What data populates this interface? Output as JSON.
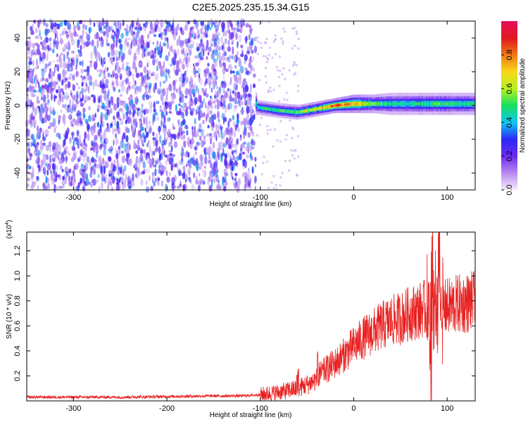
{
  "chart_data": [
    {
      "type": "heatmap",
      "title": "C2E5.2025.235.15.34.G15",
      "xlabel": "Height of straight line (km)",
      "ylabel": "Frequency (Hz)",
      "xlim": [
        -350,
        130
      ],
      "ylim": [
        -50,
        50
      ],
      "xticks": [
        -300,
        -200,
        -100,
        0,
        100
      ],
      "xtick_labels": [
        "-300",
        "-200",
        "-100",
        "0",
        "100"
      ],
      "yticks": [
        -40,
        -20,
        0,
        20,
        40
      ],
      "ytick_labels": [
        "-40",
        "-20",
        "0",
        "20",
        "40"
      ],
      "colorbar": {
        "label": "Normalized spectral amplitude",
        "range": [
          0,
          1
        ],
        "ticks": [
          0.0,
          0.2,
          0.4,
          0.6,
          0.8
        ],
        "tick_labels": [
          "0.0",
          "0.2",
          "0.4",
          "0.6",
          "0.8"
        ],
        "colormap": [
          "#f4eefc",
          "#b98af0",
          "#6a2cf0",
          "#2a2af8",
          "#10c8f0",
          "#18e060",
          "#b8f020",
          "#f8d818",
          "#f07818",
          "#e01820",
          "#e8105a"
        ]
      },
      "noise_region": {
        "x_range": [
          -350,
          -105
        ],
        "y_range": [
          -50,
          50
        ],
        "level": "low-medium"
      },
      "signal_band": [
        {
          "x": -105,
          "f_center": -1,
          "f_width": 4,
          "amp": 0.45
        },
        {
          "x": -80,
          "f_center": -3,
          "f_width": 4,
          "amp": 0.5
        },
        {
          "x": -60,
          "f_center": -4,
          "f_width": 4,
          "amp": 0.55
        },
        {
          "x": -40,
          "f_center": -2,
          "f_width": 4,
          "amp": 0.65
        },
        {
          "x": -20,
          "f_center": 0,
          "f_width": 4,
          "amp": 0.85
        },
        {
          "x": 0,
          "f_center": 1,
          "f_width": 5,
          "amp": 0.75
        },
        {
          "x": 20,
          "f_center": 1,
          "f_width": 5,
          "amp": 0.55
        },
        {
          "x": 40,
          "f_center": 1,
          "f_width": 6,
          "amp": 0.45
        },
        {
          "x": 60,
          "f_center": 1,
          "f_width": 6,
          "amp": 0.45
        },
        {
          "x": 80,
          "f_center": 1,
          "f_width": 6,
          "amp": 0.5
        },
        {
          "x": 100,
          "f_center": 1,
          "f_width": 6,
          "amp": 0.5
        },
        {
          "x": 130,
          "f_center": 1,
          "f_width": 6,
          "amp": 0.45
        }
      ]
    },
    {
      "type": "line",
      "title": "",
      "xlabel": "Height of straight line (km)",
      "ylabel": "SNR (10 * v/v)",
      "yscale_label": "(x10",
      "yscale_exp": "4",
      "yscale_close": ")",
      "xlim": [
        -350,
        130
      ],
      "ylim": [
        0,
        1.35
      ],
      "xticks": [
        -300,
        -200,
        -100,
        0,
        100
      ],
      "xtick_labels": [
        "-300",
        "-200",
        "-100",
        "0",
        "100"
      ],
      "yticks": [
        0.2,
        0.4,
        0.6,
        0.8,
        1.0,
        1.2
      ],
      "ytick_labels": [
        "0.2",
        "0.4",
        "0.6",
        "0.8",
        "1.0",
        "1.2"
      ],
      "line_color": "#e82020",
      "series": [
        {
          "name": "SNR",
          "x": [
            -350,
            -300,
            -250,
            -200,
            -150,
            -120,
            -100,
            -80,
            -60,
            -50,
            -40,
            -35,
            -30,
            -20,
            -10,
            0,
            10,
            20,
            30,
            40,
            50,
            60,
            70,
            75,
            80,
            85,
            90,
            95,
            100,
            110,
            120,
            130
          ],
          "y": [
            0.03,
            0.03,
            0.03,
            0.035,
            0.04,
            0.04,
            0.05,
            0.07,
            0.1,
            0.13,
            0.17,
            0.22,
            0.25,
            0.3,
            0.37,
            0.44,
            0.5,
            0.55,
            0.6,
            0.64,
            0.66,
            0.7,
            0.72,
            0.74,
            0.7,
            0.76,
            0.72,
            0.74,
            0.75,
            0.77,
            0.78,
            0.8
          ]
        }
      ],
      "annotations": [
        {
          "x": -38,
          "y_peak": 0.45
        },
        {
          "x": -60,
          "y_peak": 0.27
        },
        {
          "x": 84,
          "y_peak": 1.35
        },
        {
          "x": 91,
          "y_peak": 1.35
        },
        {
          "x": 82,
          "y_low": 0.05
        }
      ]
    }
  ]
}
